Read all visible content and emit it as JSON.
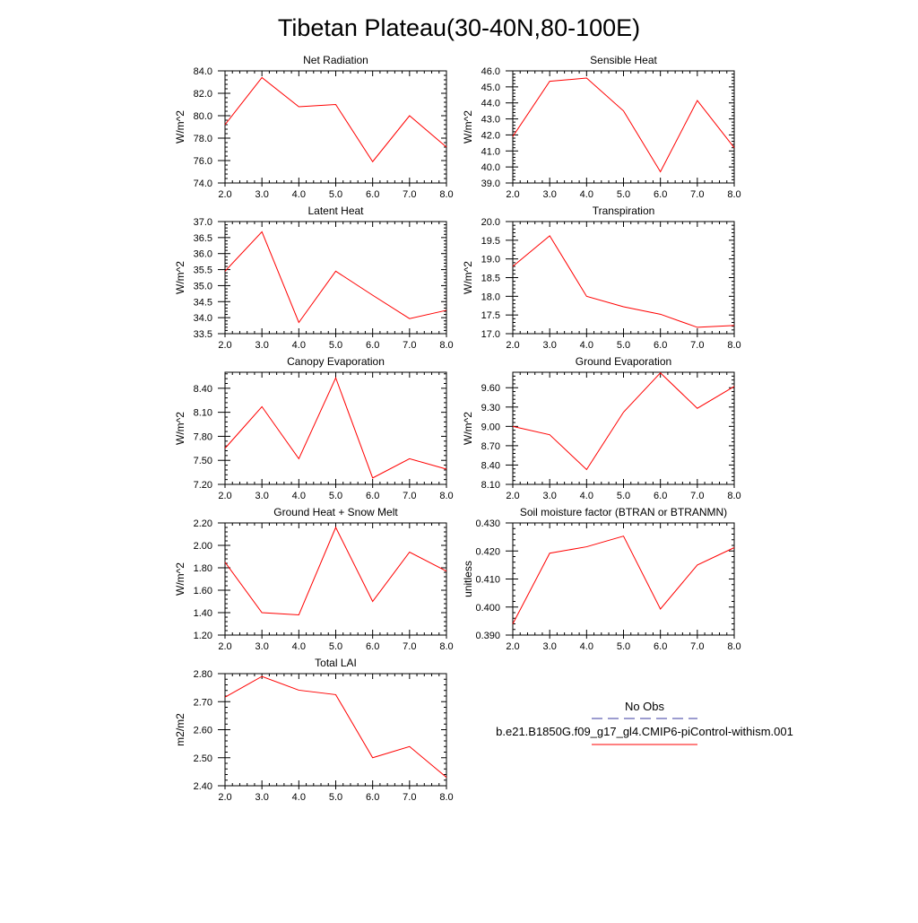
{
  "title": "Tibetan Plateau(30-40N,80-100E)",
  "colors": {
    "model_line": "#ff0000",
    "obs_line": "#3a3aa0",
    "axis": "#000000"
  },
  "legend": {
    "entries": [
      {
        "label": "No Obs",
        "style": "dashed",
        "color": "#3a3aa0"
      },
      {
        "label": "b.e21.B1850G.f09_g17_gl4.CMIP6-piControl-withism.001",
        "style": "solid",
        "color": "#ff0000"
      }
    ]
  },
  "chart_data": [
    {
      "type": "line",
      "title": "Net Radiation",
      "ylabel": "W/m^2",
      "x": [
        2.0,
        3.0,
        4.0,
        5.0,
        6.0,
        7.0,
        8.0
      ],
      "xticks": [
        "2.0",
        "3.0",
        "4.0",
        "5.0",
        "6.0",
        "7.0",
        "8.0"
      ],
      "xlim": [
        2.0,
        8.0
      ],
      "ylim": [
        74.0,
        84.0
      ],
      "yticks": [
        74.0,
        76.0,
        78.0,
        80.0,
        82.0,
        84.0
      ],
      "ytick_labels": [
        "74.0",
        "76.0",
        "78.0",
        "80.0",
        "82.0",
        "84.0"
      ],
      "series": [
        {
          "values": [
            79.2,
            83.4,
            80.8,
            81.0,
            75.9,
            80.0,
            77.2
          ]
        }
      ]
    },
    {
      "type": "line",
      "title": "Sensible Heat",
      "ylabel": "W/m^2",
      "x": [
        2.0,
        3.0,
        4.0,
        5.0,
        6.0,
        7.0,
        8.0
      ],
      "xticks": [
        "2.0",
        "3.0",
        "4.0",
        "5.0",
        "6.0",
        "7.0",
        "8.0"
      ],
      "xlim": [
        2.0,
        8.0
      ],
      "ylim": [
        39.0,
        46.0
      ],
      "yticks": [
        39.0,
        40.0,
        41.0,
        42.0,
        43.0,
        44.0,
        45.0,
        46.0
      ],
      "ytick_labels": [
        "39.0",
        "40.0",
        "41.0",
        "42.0",
        "43.0",
        "44.0",
        "45.0",
        "46.0"
      ],
      "series": [
        {
          "values": [
            41.9,
            45.35,
            45.55,
            43.5,
            39.7,
            44.15,
            41.2
          ]
        }
      ]
    },
    {
      "type": "line",
      "title": "Latent Heat",
      "ylabel": "W/m^2",
      "x": [
        2.0,
        3.0,
        4.0,
        5.0,
        6.0,
        7.0,
        8.0
      ],
      "xticks": [
        "2.0",
        "3.0",
        "4.0",
        "5.0",
        "6.0",
        "7.0",
        "8.0"
      ],
      "xlim": [
        2.0,
        8.0
      ],
      "ylim": [
        33.5,
        37.0
      ],
      "yticks": [
        33.5,
        34.0,
        34.5,
        35.0,
        35.5,
        36.0,
        36.5,
        37.0
      ],
      "ytick_labels": [
        "33.5",
        "34.0",
        "34.5",
        "35.0",
        "35.5",
        "36.0",
        "36.5",
        "37.0"
      ],
      "series": [
        {
          "values": [
            35.45,
            36.68,
            33.85,
            35.45,
            34.7,
            33.97,
            34.23
          ]
        }
      ]
    },
    {
      "type": "line",
      "title": "Transpiration",
      "ylabel": "W/m^2",
      "x": [
        2.0,
        3.0,
        4.0,
        5.0,
        6.0,
        7.0,
        8.0
      ],
      "xticks": [
        "2.0",
        "3.0",
        "4.0",
        "5.0",
        "6.0",
        "7.0",
        "8.0"
      ],
      "xlim": [
        2.0,
        8.0
      ],
      "ylim": [
        17.0,
        20.0
      ],
      "yticks": [
        17.0,
        17.5,
        18.0,
        18.5,
        19.0,
        19.5,
        20.0
      ],
      "ytick_labels": [
        "17.0",
        "17.5",
        "18.0",
        "18.5",
        "19.0",
        "19.5",
        "20.0"
      ],
      "series": [
        {
          "values": [
            18.8,
            19.62,
            18.0,
            17.72,
            17.52,
            17.17,
            17.22
          ]
        }
      ]
    },
    {
      "type": "line",
      "title": "Canopy Evaporation",
      "ylabel": "W/m^2",
      "x": [
        2.0,
        3.0,
        4.0,
        5.0,
        6.0,
        7.0,
        8.0
      ],
      "xticks": [
        "2.0",
        "3.0",
        "4.0",
        "5.0",
        "6.0",
        "7.0",
        "8.0"
      ],
      "xlim": [
        2.0,
        8.0
      ],
      "ylim": [
        7.2,
        8.6
      ],
      "yticks": [
        7.2,
        7.5,
        7.8,
        8.1,
        8.4
      ],
      "ytick_labels": [
        "7.20",
        "7.50",
        "7.80",
        "8.10",
        "8.40"
      ],
      "series": [
        {
          "values": [
            7.65,
            8.17,
            7.52,
            8.53,
            7.28,
            7.52,
            7.39
          ]
        }
      ]
    },
    {
      "type": "line",
      "title": "Ground Evaporation",
      "ylabel": "W/m^2",
      "x": [
        2.0,
        3.0,
        4.0,
        5.0,
        6.0,
        7.0,
        8.0
      ],
      "xticks": [
        "2.0",
        "3.0",
        "4.0",
        "5.0",
        "6.0",
        "7.0",
        "8.0"
      ],
      "xlim": [
        2.0,
        8.0
      ],
      "ylim": [
        8.1,
        9.84
      ],
      "yticks": [
        8.1,
        8.4,
        8.7,
        9.0,
        9.3,
        9.6
      ],
      "ytick_labels": [
        "8.10",
        "8.40",
        "8.70",
        "9.00",
        "9.30",
        "9.60"
      ],
      "series": [
        {
          "values": [
            9.0,
            8.87,
            8.33,
            9.22,
            9.83,
            9.28,
            9.62
          ]
        }
      ]
    },
    {
      "type": "line",
      "title": "Ground Heat + Snow Melt",
      "ylabel": "W/m^2",
      "x": [
        2.0,
        3.0,
        4.0,
        5.0,
        6.0,
        7.0,
        8.0
      ],
      "xticks": [
        "2.0",
        "3.0",
        "4.0",
        "5.0",
        "6.0",
        "7.0",
        "8.0"
      ],
      "xlim": [
        2.0,
        8.0
      ],
      "ylim": [
        1.2,
        2.2
      ],
      "yticks": [
        1.2,
        1.4,
        1.6,
        1.8,
        2.0,
        2.2
      ],
      "ytick_labels": [
        "1.20",
        "1.40",
        "1.60",
        "1.80",
        "2.00",
        "2.20"
      ],
      "series": [
        {
          "values": [
            1.85,
            1.4,
            1.38,
            2.16,
            1.5,
            1.94,
            1.77
          ]
        }
      ]
    },
    {
      "type": "line",
      "title": "Soil moisture factor (BTRAN or BTRANMN)",
      "ylabel": "unitless",
      "x": [
        2.0,
        3.0,
        4.0,
        5.0,
        6.0,
        7.0,
        8.0
      ],
      "xticks": [
        "2.0",
        "3.0",
        "4.0",
        "5.0",
        "6.0",
        "7.0",
        "8.0"
      ],
      "xlim": [
        2.0,
        8.0
      ],
      "ylim": [
        0.39,
        0.43
      ],
      "yticks": [
        0.39,
        0.4,
        0.41,
        0.42,
        0.43
      ],
      "ytick_labels": [
        "0.390",
        "0.400",
        "0.410",
        "0.420",
        "0.430"
      ],
      "series": [
        {
          "values": [
            0.394,
            0.4192,
            0.4215,
            0.4253,
            0.3993,
            0.415,
            0.4212
          ]
        }
      ]
    },
    {
      "type": "line",
      "title": "Total LAI",
      "ylabel": "m2/m2",
      "x": [
        2.0,
        3.0,
        4.0,
        5.0,
        6.0,
        7.0,
        8.0
      ],
      "xticks": [
        "2.0",
        "3.0",
        "4.0",
        "5.0",
        "6.0",
        "7.0",
        "8.0"
      ],
      "xlim": [
        2.0,
        8.0
      ],
      "ylim": [
        2.4,
        2.8
      ],
      "yticks": [
        2.4,
        2.5,
        2.6,
        2.7,
        2.8
      ],
      "ytick_labels": [
        "2.40",
        "2.50",
        "2.60",
        "2.70",
        "2.80"
      ],
      "series": [
        {
          "values": [
            2.716,
            2.79,
            2.741,
            2.725,
            2.5,
            2.54,
            2.43
          ]
        }
      ]
    }
  ]
}
